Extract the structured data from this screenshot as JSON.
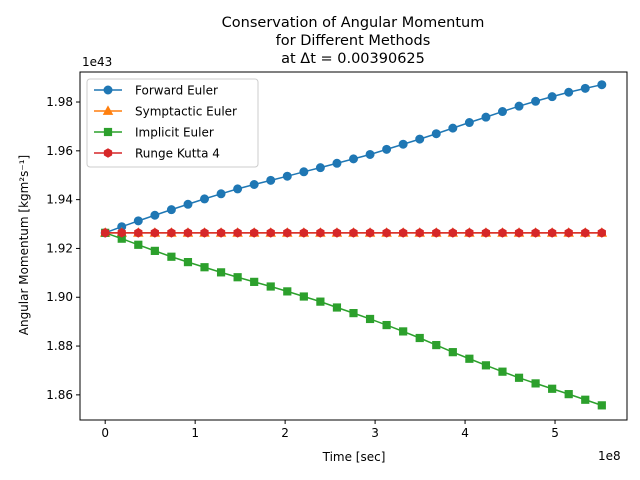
{
  "chart_data": {
    "type": "line",
    "title_lines": [
      "Conservation of Angular Momentum",
      "for Different Methods",
      "at Δt = 0.00390625"
    ],
    "xlabel": "Time [sec]",
    "ylabel": "Angular Momentum [kgm²s⁻¹]",
    "x_offset_label": "1e8",
    "y_offset_label": "1e43",
    "xlim": [
      -0.28,
      5.8
    ],
    "ylim": [
      1.8497,
      1.9923
    ],
    "x_ticks": [
      0,
      1,
      2,
      3,
      4,
      5
    ],
    "x_tick_labels": [
      "0",
      "1",
      "2",
      "3",
      "4",
      "5"
    ],
    "y_ticks": [
      1.86,
      1.88,
      1.9,
      1.92,
      1.94,
      1.96,
      1.98
    ],
    "y_tick_labels": [
      "1.86",
      "1.88",
      "1.90",
      "1.92",
      "1.94",
      "1.96",
      "1.98"
    ],
    "grid": false,
    "legend_position": "top-left",
    "x": [
      0.0,
      0.184,
      0.368,
      0.552,
      0.736,
      0.92,
      1.104,
      1.288,
      1.472,
      1.656,
      1.84,
      2.024,
      2.208,
      2.392,
      2.576,
      2.76,
      2.944,
      3.128,
      3.312,
      3.496,
      3.68,
      3.864,
      4.048,
      4.232,
      4.416,
      4.6,
      4.784,
      4.968,
      5.152,
      5.336,
      5.52
    ],
    "series": [
      {
        "name": "Forward Euler",
        "marker": "circle",
        "color": "#1f77b4",
        "values": [
          1.9264,
          1.9289,
          1.9313,
          1.9336,
          1.9359,
          1.9381,
          1.9403,
          1.9424,
          1.9444,
          1.9462,
          1.9479,
          1.9496,
          1.9514,
          1.9531,
          1.9549,
          1.9567,
          1.9585,
          1.9606,
          1.9627,
          1.9648,
          1.967,
          1.9693,
          1.9716,
          1.9738,
          1.9761,
          1.9783,
          1.9803,
          1.9822,
          1.984,
          1.9856,
          1.9871
        ]
      },
      {
        "name": "Symptactic Euler",
        "marker": "triangle",
        "color": "#ff7f0e",
        "values": [
          1.9264,
          1.9264,
          1.9264,
          1.9264,
          1.9264,
          1.9264,
          1.9264,
          1.9264,
          1.9264,
          1.9264,
          1.9264,
          1.9264,
          1.9264,
          1.9264,
          1.9264,
          1.9264,
          1.9264,
          1.9264,
          1.9264,
          1.9264,
          1.9264,
          1.9264,
          1.9264,
          1.9264,
          1.9264,
          1.9264,
          1.9264,
          1.9264,
          1.9264,
          1.9264,
          1.9264
        ]
      },
      {
        "name": "Implicit Euler",
        "marker": "square",
        "color": "#2ca02c",
        "values": [
          1.9264,
          1.924,
          1.9215,
          1.919,
          1.9166,
          1.9144,
          1.9123,
          1.9102,
          1.9082,
          1.9063,
          1.9044,
          1.9024,
          1.9003,
          1.8982,
          1.8958,
          1.8935,
          1.8911,
          1.8886,
          1.886,
          1.8833,
          1.8804,
          1.8775,
          1.8748,
          1.8721,
          1.8695,
          1.867,
          1.8647,
          1.8625,
          1.8603,
          1.858,
          1.8557
        ]
      },
      {
        "name": "Runge Kutta 4",
        "marker": "hexagon",
        "color": "#d62728",
        "values": [
          1.9264,
          1.9264,
          1.9264,
          1.9264,
          1.9264,
          1.9264,
          1.9264,
          1.9264,
          1.9264,
          1.9264,
          1.9264,
          1.9264,
          1.9264,
          1.9264,
          1.9264,
          1.9264,
          1.9264,
          1.9264,
          1.9264,
          1.9264,
          1.9264,
          1.9264,
          1.9264,
          1.9264,
          1.9264,
          1.9264,
          1.9264,
          1.9264,
          1.9264,
          1.9264,
          1.9264
        ]
      }
    ]
  }
}
